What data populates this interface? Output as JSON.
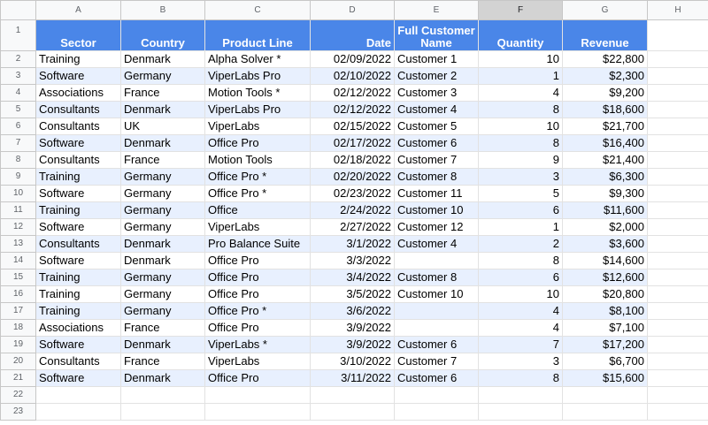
{
  "columns": [
    "A",
    "B",
    "C",
    "D",
    "E",
    "F",
    "G",
    "H"
  ],
  "row_numbers": [
    "1",
    "2",
    "3",
    "4",
    "5",
    "6",
    "7",
    "8",
    "9",
    "10",
    "11",
    "12",
    "13",
    "14",
    "15",
    "16",
    "17",
    "18",
    "19",
    "20",
    "21",
    "22",
    "23"
  ],
  "headers": {
    "sector": "Sector",
    "country": "Country",
    "product_line": "Product Line",
    "date": "Date",
    "full_customer_name": "Full Customer Name",
    "quantity": "Quantity",
    "revenue": "Revenue"
  },
  "rows": [
    {
      "sector": "Training",
      "country": "Denmark",
      "product": "Alpha Solver *",
      "date": "02/09/2022",
      "customer": "Customer 1",
      "quantity": "10",
      "revenue": "$22,800"
    },
    {
      "sector": "Software",
      "country": "Germany",
      "product": "ViperLabs Pro",
      "date": "02/10/2022",
      "customer": "Customer 2",
      "quantity": "1",
      "revenue": "$2,300"
    },
    {
      "sector": "Associations",
      "country": "France",
      "product": "Motion Tools *",
      "date": "02/12/2022",
      "customer": "Customer 3",
      "quantity": "4",
      "revenue": "$9,200"
    },
    {
      "sector": "Consultants",
      "country": "Denmark",
      "product": "ViperLabs Pro",
      "date": "02/12/2022",
      "customer": "Customer 4",
      "quantity": "8",
      "revenue": "$18,600"
    },
    {
      "sector": "Consultants",
      "country": "UK",
      "product": "ViperLabs",
      "date": "02/15/2022",
      "customer": "Customer 5",
      "quantity": "10",
      "revenue": "$21,700"
    },
    {
      "sector": "Software",
      "country": "Denmark",
      "product": "Office Pro",
      "date": "02/17/2022",
      "customer": "Customer 6",
      "quantity": "8",
      "revenue": "$16,400"
    },
    {
      "sector": "Consultants",
      "country": "France",
      "product": "Motion Tools",
      "date": "02/18/2022",
      "customer": "Customer 7",
      "quantity": "9",
      "revenue": "$21,400"
    },
    {
      "sector": "Training",
      "country": "Germany",
      "product": "Office Pro *",
      "date": "02/20/2022",
      "customer": "Customer 8",
      "quantity": "3",
      "revenue": "$6,300"
    },
    {
      "sector": "Software",
      "country": "Germany",
      "product": "Office Pro *",
      "date": "02/23/2022",
      "customer": "Customer 11",
      "quantity": "5",
      "revenue": "$9,300"
    },
    {
      "sector": "Training",
      "country": "Germany",
      "product": "Office",
      "date": "2/24/2022",
      "customer": "Customer 10",
      "quantity": "6",
      "revenue": "$11,600"
    },
    {
      "sector": "Software",
      "country": "Germany",
      "product": "ViperLabs",
      "date": "2/27/2022",
      "customer": "Customer 12",
      "quantity": "1",
      "revenue": "$2,000"
    },
    {
      "sector": "Consultants",
      "country": "Denmark",
      "product": "Pro Balance Suite",
      "date": "3/1/2022",
      "customer": "Customer 4",
      "quantity": "2",
      "revenue": "$3,600"
    },
    {
      "sector": "Software",
      "country": "Denmark",
      "product": "Office Pro",
      "date": "3/3/2022",
      "customer": "",
      "quantity": "8",
      "revenue": "$14,600"
    },
    {
      "sector": "Training",
      "country": "Germany",
      "product": "Office Pro",
      "date": "3/4/2022",
      "customer": "Customer 8",
      "quantity": "6",
      "revenue": "$12,600"
    },
    {
      "sector": "Training",
      "country": "Germany",
      "product": "Office Pro",
      "date": "3/5/2022",
      "customer": "Customer 10",
      "quantity": "10",
      "revenue": "$20,800"
    },
    {
      "sector": "Training",
      "country": "Germany",
      "product": "Office Pro *",
      "date": "3/6/2022",
      "customer": "",
      "quantity": "4",
      "revenue": "$8,100"
    },
    {
      "sector": "Associations",
      "country": "France",
      "product": "Office Pro",
      "date": "3/9/2022",
      "customer": "",
      "quantity": "4",
      "revenue": "$7,100"
    },
    {
      "sector": "Software",
      "country": "Denmark",
      "product": "ViperLabs *",
      "date": "3/9/2022",
      "customer": "Customer 6",
      "quantity": "7",
      "revenue": "$17,200"
    },
    {
      "sector": "Consultants",
      "country": "France",
      "product": "ViperLabs",
      "date": "3/10/2022",
      "customer": "Customer 7",
      "quantity": "3",
      "revenue": "$6,700"
    },
    {
      "sector": "Software",
      "country": "Denmark",
      "product": "Office Pro",
      "date": "3/11/2022",
      "customer": "Customer 6",
      "quantity": "8",
      "revenue": "$15,600"
    }
  ],
  "colors": {
    "header_fill": "#4a86e8",
    "header_text": "#ffffff",
    "band_fill": "#e8f0fe",
    "grid_line": "#e2e2e2",
    "selected_column_header": "#d3d3d3"
  }
}
